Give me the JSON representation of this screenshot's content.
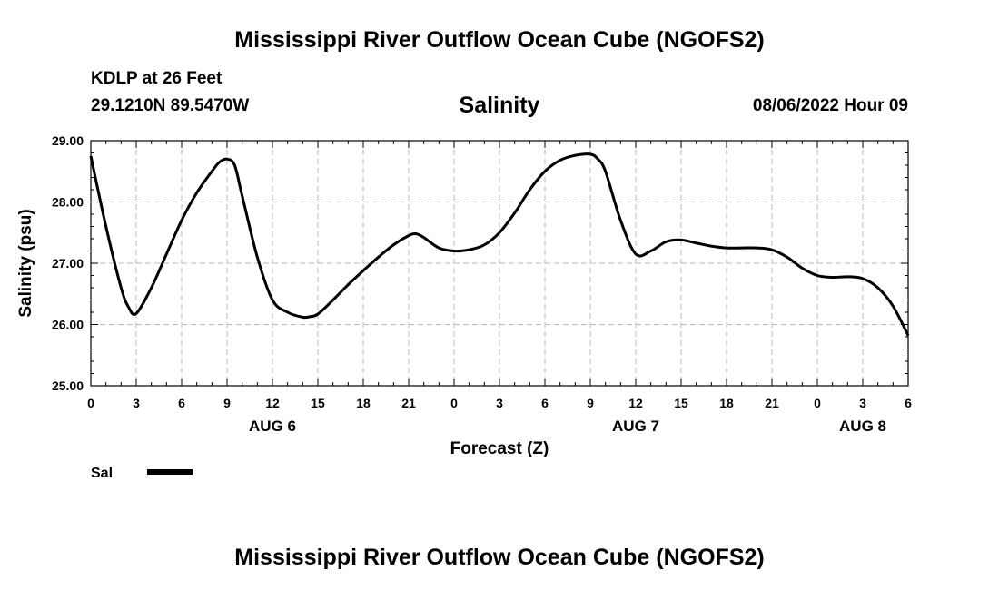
{
  "header": {
    "title": "Mississippi River Outflow Ocean Cube (NGOFS2)",
    "station": "KDLP at 26 Feet",
    "location": "29.1210N  89.5470W",
    "timestamp": "08/06/2022 Hour 09"
  },
  "footer": {
    "title": "Mississippi River Outflow Ocean Cube (NGOFS2)"
  },
  "chart_data": {
    "type": "line",
    "title": "Salinity",
    "xlabel": "Forecast (Z)",
    "ylabel": "Salinity (psu)",
    "ylim": [
      25.0,
      29.0
    ],
    "xlim": [
      0,
      54
    ],
    "grid": true,
    "y_ticks": [
      "25.00",
      "26.00",
      "27.00",
      "28.00",
      "29.00"
    ],
    "y_tick_values": [
      25,
      26,
      27,
      28,
      29
    ],
    "x_ticks": [
      {
        "t": 0,
        "label": "0"
      },
      {
        "t": 3,
        "label": "3"
      },
      {
        "t": 6,
        "label": "6"
      },
      {
        "t": 9,
        "label": "9"
      },
      {
        "t": 12,
        "label": "12"
      },
      {
        "t": 15,
        "label": "15"
      },
      {
        "t": 18,
        "label": "18"
      },
      {
        "t": 21,
        "label": "21"
      },
      {
        "t": 24,
        "label": "0"
      },
      {
        "t": 27,
        "label": "3"
      },
      {
        "t": 30,
        "label": "6"
      },
      {
        "t": 33,
        "label": "9"
      },
      {
        "t": 36,
        "label": "12"
      },
      {
        "t": 39,
        "label": "15"
      },
      {
        "t": 42,
        "label": "18"
      },
      {
        "t": 45,
        "label": "21"
      },
      {
        "t": 48,
        "label": "0"
      },
      {
        "t": 51,
        "label": "3"
      },
      {
        "t": 54,
        "label": "6"
      }
    ],
    "date_labels": [
      {
        "t": 12,
        "label": "AUG 6"
      },
      {
        "t": 36,
        "label": "AUG 7"
      },
      {
        "t": 51,
        "label": "AUG 8"
      }
    ],
    "legend": {
      "label": "Sal",
      "placement": "bottom-left"
    },
    "series": [
      {
        "name": "Sal",
        "x": [
          0,
          1,
          2,
          2.5,
          3,
          4,
          5,
          6,
          7,
          8,
          8.5,
          9,
          9.5,
          10,
          11,
          12,
          13,
          14,
          14.5,
          15,
          16,
          17,
          18,
          19,
          20,
          21,
          21.5,
          22,
          23,
          24,
          25,
          26,
          27,
          28,
          29,
          30,
          31,
          32,
          33,
          33.5,
          34,
          35,
          36,
          37,
          38,
          39,
          40,
          41,
          42,
          43,
          44,
          45,
          46,
          47,
          48,
          49,
          50,
          51,
          52,
          53,
          54
        ],
        "y": [
          28.75,
          27.6,
          26.6,
          26.28,
          26.18,
          26.6,
          27.15,
          27.7,
          28.15,
          28.5,
          28.65,
          28.7,
          28.6,
          28.1,
          27.1,
          26.4,
          26.2,
          26.12,
          26.13,
          26.17,
          26.4,
          26.65,
          26.88,
          27.1,
          27.3,
          27.45,
          27.48,
          27.42,
          27.25,
          27.2,
          27.22,
          27.3,
          27.5,
          27.82,
          28.2,
          28.5,
          28.68,
          28.76,
          28.78,
          28.7,
          28.5,
          27.7,
          27.15,
          27.2,
          27.35,
          27.38,
          27.33,
          27.28,
          27.25,
          27.25,
          27.25,
          27.22,
          27.1,
          26.92,
          26.8,
          26.77,
          26.78,
          26.75,
          26.6,
          26.3,
          25.82
        ]
      }
    ]
  }
}
